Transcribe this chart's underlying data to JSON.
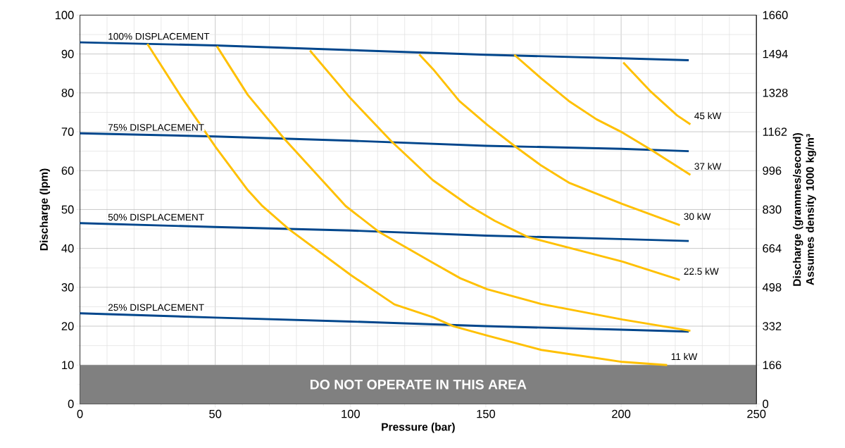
{
  "chart_data": {
    "type": "line",
    "xlabel": "Pressure (bar)",
    "ylabel": "Discharge (lpm)",
    "y2label": "Discharge (grammes/second) Assumes density 1000 kg/m³",
    "xlim": [
      0,
      250
    ],
    "xticks": [
      0,
      50,
      100,
      150,
      200,
      250
    ],
    "ylim": [
      0,
      100
    ],
    "yticks": [
      0,
      10,
      20,
      30,
      40,
      50,
      60,
      70,
      80,
      90,
      100
    ],
    "y2lim": [
      0,
      1660
    ],
    "y2ticks": [
      0,
      166,
      332,
      498,
      664,
      830,
      996,
      1162,
      1328,
      1494,
      1660
    ],
    "grid": true,
    "line_style": "solid",
    "bands": [
      {
        "axis": "y",
        "from": 0,
        "to": 10,
        "label": "DO NOT OPERATE IN THIS AREA",
        "color": "#808080"
      }
    ],
    "series": [
      {
        "name": "100% DISPLACEMENT",
        "color": "#00468c",
        "x": [
          0,
          50,
          100,
          150,
          200,
          225
        ],
        "values": [
          93,
          92.2,
          91,
          89.8,
          88.9,
          88.4
        ]
      },
      {
        "name": "75% DISPLACEMENT",
        "color": "#00468c",
        "x": [
          0,
          50,
          100,
          150,
          200,
          225
        ],
        "values": [
          69.6,
          68.8,
          67.7,
          66.4,
          65.6,
          65.0
        ]
      },
      {
        "name": "50% DISPLACEMENT",
        "color": "#00468c",
        "x": [
          0,
          50,
          100,
          150,
          200,
          225
        ],
        "values": [
          46.5,
          45.5,
          44.6,
          43.3,
          42.4,
          41.9
        ]
      },
      {
        "name": "25% DISPLACEMENT",
        "color": "#00468c",
        "x": [
          0,
          50,
          100,
          150,
          200,
          225
        ],
        "values": [
          23.3,
          22.2,
          21.2,
          20.0,
          19.1,
          18.6
        ]
      },
      {
        "name": "11 kW",
        "color": "#ffc000",
        "x": [
          24.9,
          37.5,
          50.2,
          62,
          67.4,
          77.3,
          100.2,
          116.2,
          130.5,
          138,
          150.5,
          170.5,
          200.5,
          217
        ],
        "values": [
          92.6,
          78.9,
          66.0,
          55,
          50.9,
          44.9,
          33.1,
          25.6,
          22.3,
          20.0,
          17.6,
          13.9,
          10.8,
          10
        ]
      },
      {
        "color": "#ffc000",
        "x": [
          50.6,
          62,
          75.5,
          98.2,
          110.4,
          130.4,
          140.6,
          150.5,
          170.5,
          200.5,
          225.6
        ],
        "values": [
          92.0,
          79.5,
          68.2,
          50.9,
          44.3,
          36.3,
          32.3,
          29.5,
          25.7,
          21.7,
          18.8
        ]
      },
      {
        "name": "22.5 kW",
        "color": "#ffc000",
        "x": [
          85,
          100,
          115,
          130.5,
          144,
          153.3,
          165.6,
          200.5,
          221.7
        ],
        "values": [
          90.9,
          78.6,
          67.6,
          57.5,
          50.9,
          47.1,
          42.9,
          36.6,
          31.9
        ]
      },
      {
        "name": "30 kW",
        "color": "#ffc000",
        "x": [
          125.4,
          130.5,
          140.2,
          150.5,
          160.7,
          170.5,
          180.7,
          200.5,
          221.7
        ],
        "values": [
          89.9,
          86.1,
          77.9,
          71.8,
          66.3,
          61.3,
          56.9,
          51.4,
          46.0
        ]
      },
      {
        "name": "37 kW",
        "color": "#ffc000",
        "x": [
          160.5,
          170.5,
          180.7,
          190.9,
          200.5,
          211,
          225.6
        ],
        "values": [
          89.8,
          83.7,
          77.9,
          73.2,
          69.8,
          65.4,
          58.9
        ]
      },
      {
        "name": "45 kW",
        "color": "#ffc000",
        "x": [
          200.8,
          211,
          220.7,
          225.6
        ],
        "values": [
          87.8,
          80.3,
          74.2,
          71.9
        ]
      }
    ]
  }
}
